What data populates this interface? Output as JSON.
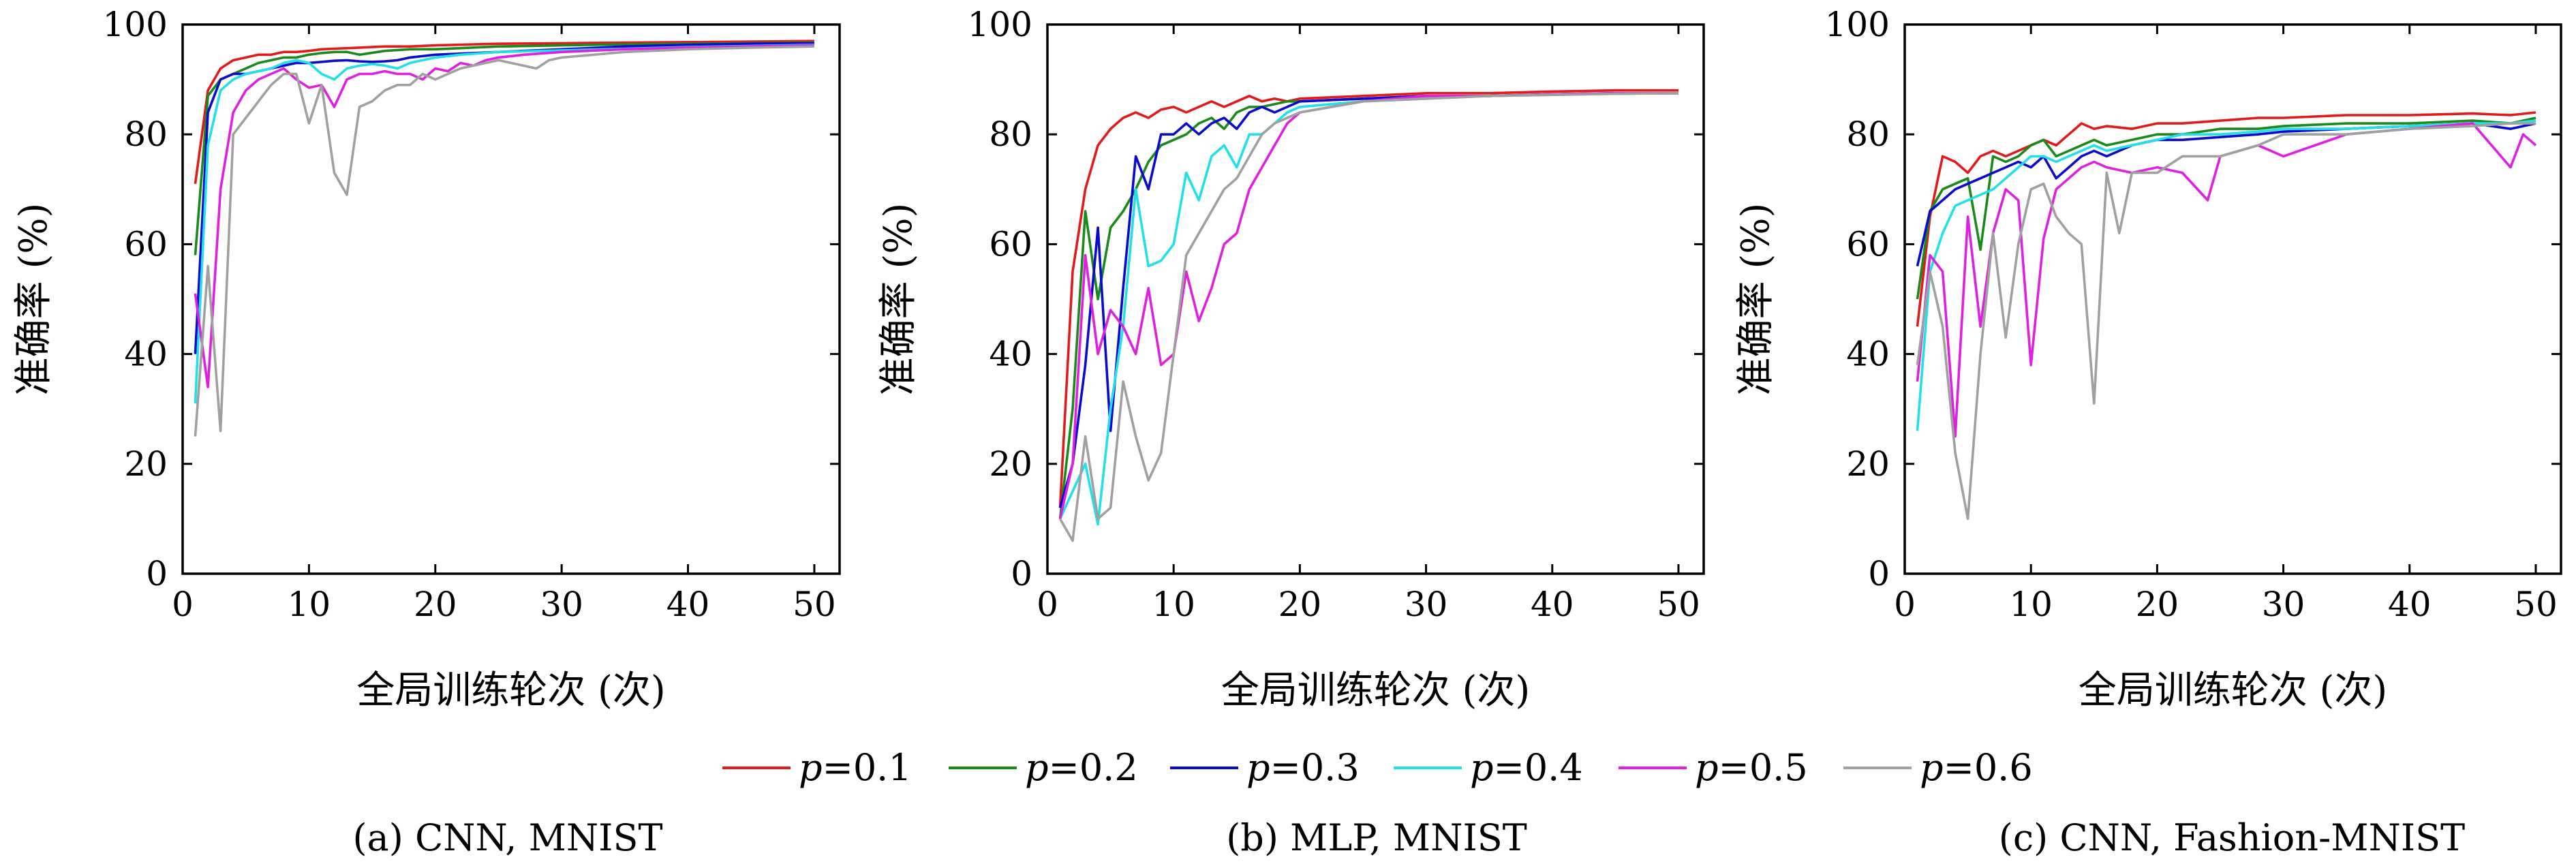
{
  "legend": [
    {
      "label": "p=0.1",
      "var": "p",
      "value": "=0.1",
      "color": "#e31a1c"
    },
    {
      "label": "p=0.2",
      "var": "p",
      "value": "=0.2",
      "color": "#1a8a1a"
    },
    {
      "label": "p=0.3",
      "var": "p",
      "value": "=0.3",
      "color": "#0a0ad0"
    },
    {
      "label": "p=0.4",
      "var": "p",
      "value": "=0.4",
      "color": "#22e0e8"
    },
    {
      "label": "p=0.5",
      "var": "p",
      "value": "=0.5",
      "color": "#e020e0"
    },
    {
      "label": "p=0.6",
      "var": "p",
      "value": "=0.6",
      "color": "#a0a0a0"
    }
  ],
  "chart_data": [
    {
      "type": "line",
      "caption": "(a) CNN, MNIST",
      "xlabel": "全局训练轮次 (次)",
      "ylabel": "准确率 (%)",
      "xlim": [
        0,
        52
      ],
      "ylim": [
        0,
        100
      ],
      "xticks": [
        0,
        10,
        20,
        30,
        40,
        50
      ],
      "yticks": [
        0,
        20,
        40,
        60,
        80,
        100
      ],
      "series": [
        {
          "name": "p=0.1",
          "x": [
            1,
            2,
            3,
            4,
            5,
            6,
            7,
            8,
            9,
            10,
            11,
            12,
            14,
            16,
            18,
            20,
            25,
            30,
            35,
            40,
            45,
            50
          ],
          "y": [
            71,
            88,
            92,
            93.5,
            94,
            94.5,
            94.5,
            95,
            95,
            95.2,
            95.5,
            95.6,
            95.8,
            96,
            96,
            96.2,
            96.5,
            96.6,
            96.7,
            96.8,
            96.9,
            97
          ]
        },
        {
          "name": "p=0.2",
          "x": [
            1,
            2,
            3,
            4,
            5,
            6,
            7,
            8,
            9,
            10,
            11,
            12,
            13,
            14,
            16,
            18,
            20,
            25,
            30,
            35,
            40,
            45,
            50
          ],
          "y": [
            58,
            87,
            90,
            91,
            92,
            93,
            93.5,
            94,
            94,
            94.5,
            94.8,
            95,
            95,
            94.5,
            95.2,
            95.5,
            95.5,
            96,
            96.2,
            96.4,
            96.5,
            96.6,
            96.7
          ]
        },
        {
          "name": "p=0.3",
          "x": [
            1,
            2,
            3,
            4,
            5,
            6,
            7,
            8,
            9,
            10,
            11,
            12,
            13,
            14,
            15,
            16,
            17,
            18,
            20,
            25,
            30,
            35,
            40,
            45,
            50
          ],
          "y": [
            40,
            84,
            90,
            91,
            91,
            91.5,
            92,
            92.5,
            93,
            93,
            93.2,
            93.4,
            93.5,
            93.3,
            93.2,
            93.3,
            93.5,
            94,
            94.5,
            95,
            95.5,
            96,
            96.3,
            96.5,
            96.6
          ]
        },
        {
          "name": "p=0.4",
          "x": [
            1,
            2,
            3,
            4,
            5,
            6,
            7,
            8,
            9,
            10,
            11,
            12,
            13,
            14,
            15,
            16,
            17,
            18,
            19,
            20,
            22,
            25,
            30,
            35,
            40,
            45,
            50
          ],
          "y": [
            31,
            78,
            88,
            90,
            91,
            91.5,
            92,
            93,
            93.5,
            93,
            91,
            90,
            92,
            92.5,
            92.8,
            92.5,
            92,
            93,
            93.5,
            94,
            94.5,
            95,
            95.3,
            95.6,
            95.9,
            96.1,
            96.3
          ]
        },
        {
          "name": "p=0.5",
          "x": [
            1,
            2,
            3,
            4,
            5,
            6,
            7,
            8,
            9,
            10,
            11,
            12,
            13,
            14,
            15,
            16,
            17,
            18,
            19,
            20,
            21,
            22,
            23,
            24,
            25,
            27,
            30,
            35,
            40,
            45,
            50
          ],
          "y": [
            51,
            34,
            70,
            84,
            88,
            90,
            91,
            92,
            90,
            88.5,
            89,
            85,
            90,
            91,
            91,
            91.5,
            91,
            91,
            90,
            92,
            91.5,
            93,
            92.5,
            93.5,
            94,
            94.5,
            95,
            95.5,
            95.8,
            96,
            96.2
          ]
        },
        {
          "name": "p=0.6",
          "x": [
            1,
            2,
            3,
            4,
            5,
            6,
            7,
            8,
            9,
            10,
            11,
            12,
            13,
            14,
            15,
            16,
            17,
            18,
            19,
            20,
            21,
            22,
            23,
            24,
            25,
            26,
            27,
            28,
            29,
            30,
            35,
            40,
            45,
            50
          ],
          "y": [
            25,
            56,
            26,
            80,
            83,
            86,
            89,
            91,
            91,
            82,
            89,
            73,
            69,
            85,
            86,
            88,
            89,
            89,
            91,
            90,
            91,
            92,
            92.5,
            93,
            93.5,
            93,
            92.5,
            92,
            93.5,
            94,
            95,
            95.5,
            95.8,
            96
          ]
        }
      ]
    },
    {
      "type": "line",
      "caption": "(b) MLP, MNIST",
      "xlabel": "全局训练轮次 (次)",
      "ylabel": "准确率 (%)",
      "xlim": [
        0,
        52
      ],
      "ylim": [
        0,
        100
      ],
      "xticks": [
        0,
        10,
        20,
        30,
        40,
        50
      ],
      "yticks": [
        0,
        20,
        40,
        60,
        80,
        100
      ],
      "series": [
        {
          "name": "p=0.1",
          "x": [
            1,
            2,
            3,
            4,
            5,
            6,
            7,
            8,
            9,
            10,
            11,
            12,
            13,
            14,
            15,
            16,
            17,
            18,
            19,
            20,
            25,
            30,
            35,
            40,
            45,
            50
          ],
          "y": [
            12,
            55,
            70,
            78,
            81,
            83,
            84,
            83,
            84.5,
            85,
            84,
            85,
            86,
            85,
            86,
            87,
            86,
            86.5,
            86,
            86.5,
            87,
            87.5,
            87.5,
            87.8,
            88,
            88
          ]
        },
        {
          "name": "p=0.2",
          "x": [
            1,
            2,
            3,
            4,
            5,
            6,
            7,
            8,
            9,
            10,
            11,
            12,
            13,
            14,
            15,
            16,
            17,
            18,
            19,
            20,
            25,
            30,
            35,
            40,
            45,
            50
          ],
          "y": [
            10,
            30,
            66,
            50,
            63,
            66,
            70,
            75,
            78,
            79,
            80,
            82,
            83,
            81,
            84,
            85,
            85,
            85.5,
            86,
            86,
            86.5,
            87,
            87,
            87.3,
            87.5,
            87.5
          ]
        },
        {
          "name": "p=0.3",
          "x": [
            1,
            2,
            3,
            4,
            5,
            6,
            7,
            8,
            9,
            10,
            11,
            12,
            13,
            14,
            15,
            16,
            17,
            18,
            19,
            20,
            25,
            30,
            35,
            40,
            45,
            50
          ],
          "y": [
            12,
            20,
            38,
            63,
            26,
            52,
            76,
            70,
            80,
            80,
            82,
            80,
            82,
            83,
            81,
            84,
            85,
            84,
            85,
            86,
            86.5,
            87,
            87,
            87.3,
            87.5,
            87.5
          ]
        },
        {
          "name": "p=0.4",
          "x": [
            1,
            2,
            3,
            4,
            5,
            6,
            7,
            8,
            9,
            10,
            11,
            12,
            13,
            14,
            15,
            16,
            17,
            18,
            19,
            20,
            25,
            30,
            35,
            40,
            45,
            50
          ],
          "y": [
            10,
            15,
            20,
            9,
            30,
            45,
            70,
            56,
            57,
            60,
            73,
            68,
            76,
            78,
            74,
            80,
            80,
            82,
            84,
            85,
            86,
            86.5,
            87,
            87.2,
            87.4,
            87.5
          ]
        },
        {
          "name": "p=0.5",
          "x": [
            1,
            2,
            3,
            4,
            5,
            6,
            7,
            8,
            9,
            10,
            11,
            12,
            13,
            14,
            15,
            16,
            17,
            18,
            19,
            20,
            25,
            30,
            35,
            40,
            45,
            50
          ],
          "y": [
            10,
            20,
            58,
            40,
            48,
            45,
            40,
            52,
            38,
            40,
            55,
            46,
            52,
            60,
            62,
            70,
            74,
            78,
            82,
            84,
            86,
            87,
            87,
            87.3,
            87.5,
            87.5
          ]
        },
        {
          "name": "p=0.6",
          "x": [
            1,
            2,
            3,
            4,
            5,
            6,
            7,
            8,
            9,
            10,
            11,
            12,
            13,
            14,
            15,
            16,
            17,
            18,
            19,
            20,
            25,
            30,
            35,
            40,
            45,
            50
          ],
          "y": [
            10,
            6,
            25,
            10,
            12,
            35,
            25,
            17,
            22,
            40,
            58,
            62,
            66,
            70,
            72,
            76,
            80,
            82,
            83,
            84,
            86,
            86.5,
            87,
            87.2,
            87.4,
            87.5
          ]
        }
      ]
    },
    {
      "type": "line",
      "caption": "(c) CNN, Fashion-MNIST",
      "xlabel": "全局训练轮次 (次)",
      "ylabel": "准确率 (%)",
      "xlim": [
        0,
        52
      ],
      "ylim": [
        0,
        100
      ],
      "xticks": [
        0,
        10,
        20,
        30,
        40,
        50
      ],
      "yticks": [
        0,
        20,
        40,
        60,
        80,
        100
      ],
      "series": [
        {
          "name": "p=0.1",
          "x": [
            1,
            2,
            3,
            4,
            5,
            6,
            7,
            8,
            9,
            10,
            11,
            12,
            13,
            14,
            15,
            16,
            18,
            20,
            22,
            25,
            28,
            30,
            35,
            40,
            45,
            48,
            50
          ],
          "y": [
            45,
            65,
            76,
            75,
            73,
            76,
            77,
            76,
            77,
            78,
            79,
            78,
            80,
            82,
            81,
            81.5,
            81,
            82,
            82,
            82.5,
            83,
            83,
            83.5,
            83.5,
            83.8,
            83.5,
            84
          ]
        },
        {
          "name": "p=0.2",
          "x": [
            1,
            2,
            3,
            4,
            5,
            6,
            7,
            8,
            9,
            10,
            11,
            12,
            13,
            14,
            15,
            16,
            18,
            20,
            22,
            25,
            28,
            30,
            35,
            40,
            45,
            48,
            50
          ],
          "y": [
            50,
            66,
            70,
            71,
            72,
            59,
            76,
            75,
            76,
            78,
            79,
            76,
            77,
            78,
            79,
            78,
            79,
            80,
            80,
            81,
            81,
            81.5,
            82,
            82,
            82.5,
            82,
            83
          ]
        },
        {
          "name": "p=0.3",
          "x": [
            1,
            2,
            3,
            4,
            5,
            6,
            7,
            8,
            9,
            10,
            11,
            12,
            13,
            14,
            15,
            16,
            18,
            20,
            22,
            25,
            28,
            30,
            35,
            40,
            45,
            48,
            50
          ],
          "y": [
            56,
            66,
            68,
            70,
            71,
            72,
            73,
            74,
            75,
            74,
            76,
            72,
            74,
            76,
            77,
            76,
            78,
            79,
            79,
            79.5,
            80,
            80.5,
            81,
            81.5,
            82,
            81,
            82
          ]
        },
        {
          "name": "p=0.4",
          "x": [
            1,
            2,
            3,
            4,
            5,
            6,
            7,
            8,
            9,
            10,
            11,
            12,
            13,
            14,
            15,
            16,
            18,
            20,
            22,
            25,
            28,
            30,
            35,
            40,
            45,
            48,
            50
          ],
          "y": [
            26,
            55,
            62,
            67,
            68,
            69,
            70,
            72,
            74,
            76,
            76,
            75,
            76,
            77,
            78,
            77,
            78,
            79,
            80,
            80,
            80.5,
            81,
            81,
            81.5,
            82,
            82,
            82.5
          ]
        },
        {
          "name": "p=0.5",
          "x": [
            1,
            2,
            3,
            4,
            5,
            6,
            7,
            8,
            9,
            10,
            11,
            12,
            13,
            14,
            15,
            16,
            18,
            20,
            22,
            24,
            25,
            28,
            30,
            35,
            40,
            45,
            48,
            49,
            50
          ],
          "y": [
            35,
            58,
            55,
            25,
            65,
            45,
            62,
            70,
            68,
            38,
            61,
            70,
            72,
            74,
            75,
            74,
            73,
            74,
            73,
            68,
            76,
            78,
            76,
            80,
            81,
            82,
            74,
            80,
            78
          ]
        },
        {
          "name": "p=0.6",
          "x": [
            1,
            2,
            3,
            4,
            5,
            6,
            7,
            8,
            9,
            10,
            11,
            12,
            13,
            14,
            15,
            16,
            17,
            18,
            20,
            22,
            25,
            28,
            30,
            35,
            40,
            45,
            48,
            50
          ],
          "y": [
            38,
            55,
            45,
            22,
            10,
            40,
            62,
            43,
            60,
            70,
            71,
            65,
            62,
            60,
            31,
            73,
            62,
            73,
            73,
            76,
            76,
            78,
            80,
            80,
            81,
            81.5,
            82,
            82
          ]
        }
      ]
    }
  ]
}
